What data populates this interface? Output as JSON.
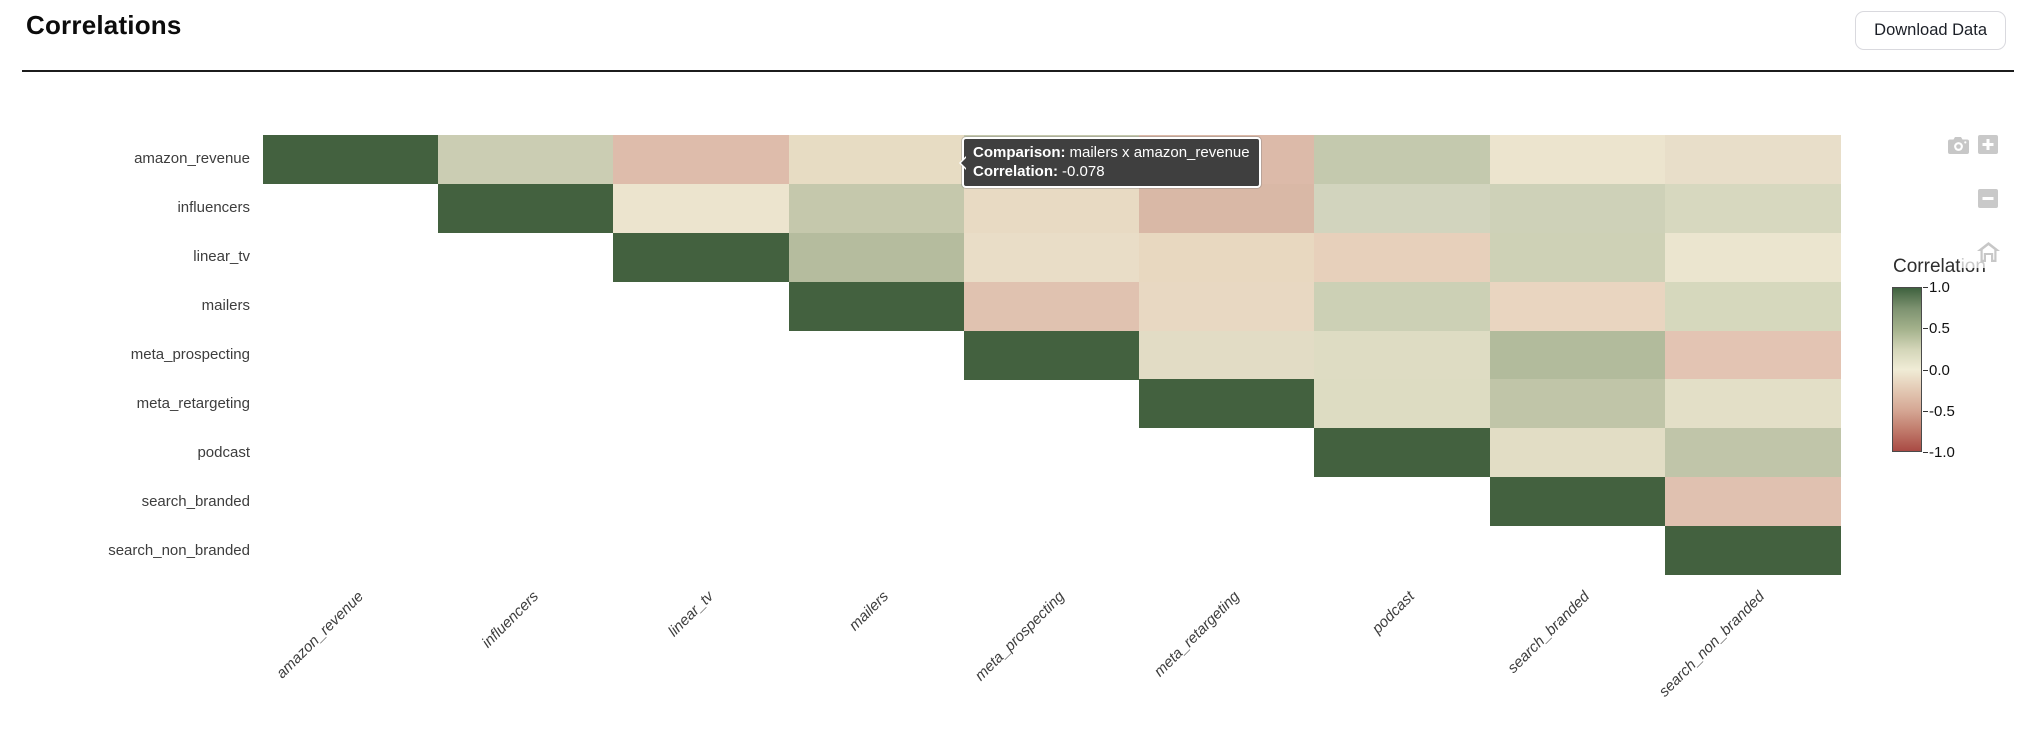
{
  "header": {
    "title": "Correlations",
    "download_button_label": "Download Data"
  },
  "chart_data": {
    "type": "heatmap",
    "title": "",
    "categories": [
      "amazon_revenue",
      "influencers",
      "linear_tv",
      "mailers",
      "meta_prospecting",
      "meta_retargeting",
      "podcast",
      "search_branded",
      "search_non_branded"
    ],
    "x_axis_labels": [
      "amazon_revenue",
      "influencers",
      "linear_tv",
      "mailers",
      "meta_prospecting",
      "meta_retargeting",
      "podcast",
      "search_branded",
      "search_non_branded"
    ],
    "y_axis_labels": [
      "amazon_revenue",
      "influencers",
      "linear_tv",
      "mailers",
      "meta_prospecting",
      "meta_retargeting",
      "podcast",
      "search_branded",
      "search_non_branded"
    ],
    "layout": {
      "shape": "upper-triangular",
      "grid": false,
      "legend_position": "right"
    },
    "cells": [
      {
        "r": 0,
        "c": 0,
        "v": 1.0,
        "color": "#43613f"
      },
      {
        "r": 0,
        "c": 1,
        "v": 0.25,
        "color": "#cbcdb3"
      },
      {
        "r": 0,
        "c": 2,
        "v": -0.32,
        "color": "#debcab"
      },
      {
        "r": 0,
        "c": 3,
        "v": -0.078,
        "color": "#e7dcc3"
      },
      {
        "r": 0,
        "c": 4,
        "v": 0.28,
        "color": "#c6c9ae"
      },
      {
        "r": 0,
        "c": 5,
        "v": -0.34,
        "color": "#dcbaa9"
      },
      {
        "r": 0,
        "c": 6,
        "v": 0.28,
        "color": "#c4c9ae"
      },
      {
        "r": 0,
        "c": 7,
        "v": 0.02,
        "color": "#ece4ce"
      },
      {
        "r": 0,
        "c": 8,
        "v": -0.04,
        "color": "#e8dec9"
      },
      {
        "r": 1,
        "c": 1,
        "v": 1.0,
        "color": "#43613f"
      },
      {
        "r": 1,
        "c": 2,
        "v": 0.02,
        "color": "#ece4ce"
      },
      {
        "r": 1,
        "c": 3,
        "v": 0.3,
        "color": "#c5c8ac"
      },
      {
        "r": 1,
        "c": 4,
        "v": -0.1,
        "color": "#e8dac3"
      },
      {
        "r": 1,
        "c": 5,
        "v": -0.38,
        "color": "#d9b8a6"
      },
      {
        "r": 1,
        "c": 6,
        "v": 0.18,
        "color": "#d2d4be"
      },
      {
        "r": 1,
        "c": 7,
        "v": 0.22,
        "color": "#ced1b8"
      },
      {
        "r": 1,
        "c": 8,
        "v": 0.15,
        "color": "#d7d8bf"
      },
      {
        "r": 2,
        "c": 2,
        "v": 1.0,
        "color": "#43613f"
      },
      {
        "r": 2,
        "c": 3,
        "v": 0.42,
        "color": "#b5bc9e"
      },
      {
        "r": 2,
        "c": 4,
        "v": -0.06,
        "color": "#e9ddc7"
      },
      {
        "r": 2,
        "c": 5,
        "v": -0.13,
        "color": "#e8d8c0"
      },
      {
        "r": 2,
        "c": 6,
        "v": -0.2,
        "color": "#e7d0bb"
      },
      {
        "r": 2,
        "c": 7,
        "v": 0.22,
        "color": "#ced1b6"
      },
      {
        "r": 2,
        "c": 8,
        "v": 0.03,
        "color": "#ebe5cf"
      },
      {
        "r": 3,
        "c": 3,
        "v": 1.0,
        "color": "#43613f"
      },
      {
        "r": 3,
        "c": 4,
        "v": -0.28,
        "color": "#e0c2b0"
      },
      {
        "r": 3,
        "c": 5,
        "v": -0.12,
        "color": "#e8d8c2"
      },
      {
        "r": 3,
        "c": 6,
        "v": 0.22,
        "color": "#ccd0b5"
      },
      {
        "r": 3,
        "c": 7,
        "v": -0.16,
        "color": "#e9d5c0"
      },
      {
        "r": 3,
        "c": 8,
        "v": 0.16,
        "color": "#d6d8bd"
      },
      {
        "r": 4,
        "c": 4,
        "v": 1.0,
        "color": "#43613f"
      },
      {
        "r": 4,
        "c": 5,
        "v": 0.05,
        "color": "#e2dcc5"
      },
      {
        "r": 4,
        "c": 6,
        "v": 0.08,
        "color": "#dedcc3"
      },
      {
        "r": 4,
        "c": 7,
        "v": 0.45,
        "color": "#b2bb9c"
      },
      {
        "r": 4,
        "c": 8,
        "v": -0.26,
        "color": "#e3c4b3"
      },
      {
        "r": 5,
        "c": 5,
        "v": 1.0,
        "color": "#43613f"
      },
      {
        "r": 5,
        "c": 6,
        "v": 0.1,
        "color": "#dddcc2"
      },
      {
        "r": 5,
        "c": 7,
        "v": 0.35,
        "color": "#c0c5a8"
      },
      {
        "r": 5,
        "c": 8,
        "v": 0.05,
        "color": "#e3dfc7"
      },
      {
        "r": 6,
        "c": 6,
        "v": 1.0,
        "color": "#43613f"
      },
      {
        "r": 6,
        "c": 7,
        "v": 0.06,
        "color": "#e2ddc5"
      },
      {
        "r": 6,
        "c": 8,
        "v": 0.35,
        "color": "#c0c5a9"
      },
      {
        "r": 7,
        "c": 7,
        "v": 1.0,
        "color": "#43613f"
      },
      {
        "r": 7,
        "c": 8,
        "v": -0.29,
        "color": "#e0c1b0"
      },
      {
        "r": 8,
        "c": 8,
        "v": 1.0,
        "color": "#43613f"
      }
    ],
    "colorbar": {
      "title": "Correlation",
      "tick_labels": [
        "1.0",
        "0.5",
        "0.0",
        "-0.5",
        "-1.0"
      ],
      "range": [
        -1,
        1
      ],
      "gradient": [
        "#3f623f",
        "#7d9270",
        "#a3b18b",
        "#d3d5b8",
        "#f0ecd6",
        "#e3c9b4",
        "#d5a794",
        "#c07a6b",
        "#a94a44"
      ]
    }
  },
  "tooltip": {
    "comparison_label": "Comparison:",
    "comparison_value": "mailers x amazon_revenue",
    "correlation_label": "Correlation:",
    "correlation_value": "-0.078"
  },
  "modebar": {
    "icons": [
      "camera-icon",
      "zoom-in-icon",
      "zoom-out-icon",
      "home-icon"
    ],
    "icon_color": "#c7c7c7"
  }
}
